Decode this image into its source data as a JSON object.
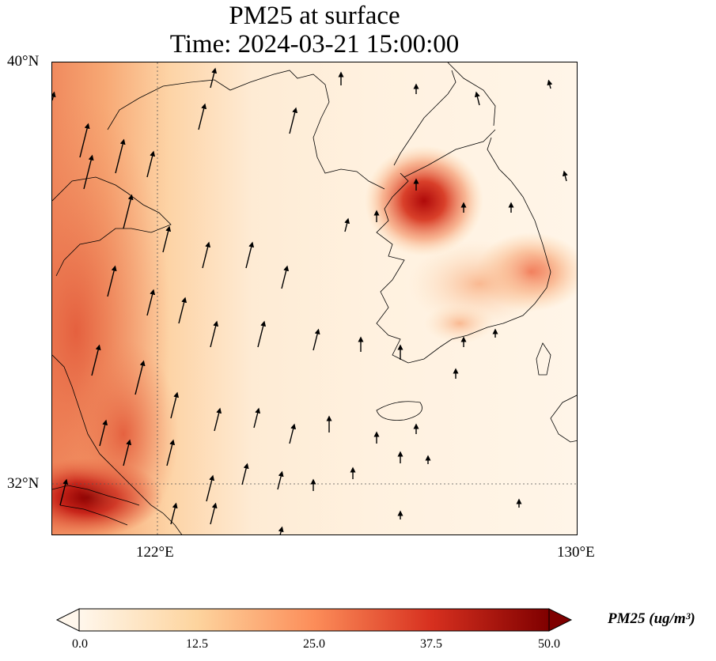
{
  "title": {
    "line1": "PM25 at surface",
    "line2": "Time: 2024-03-21 15:00:00"
  },
  "map": {
    "lat_range": [
      31,
      40
    ],
    "lon_range": [
      120,
      130
    ],
    "gridlines": {
      "lat": 32,
      "lon": 122,
      "style": "dotted"
    },
    "lat_labels": [
      "40°N",
      "32°N"
    ],
    "lon_labels": [
      "122°E",
      "130°E"
    ],
    "colormap": "OrRd",
    "wind_direction": "mostly northward (southerly winds)"
  },
  "colorbar": {
    "label": "PM25 (ug/m³)",
    "min": 0.0,
    "max": 50.0,
    "ticks": [
      "0.0",
      "12.5",
      "25.0",
      "37.5",
      "50.0"
    ],
    "extend": "both",
    "colors": [
      "#fff7ec",
      "#fdd49e",
      "#fc8d59",
      "#d7301f",
      "#7f0000"
    ]
  }
}
